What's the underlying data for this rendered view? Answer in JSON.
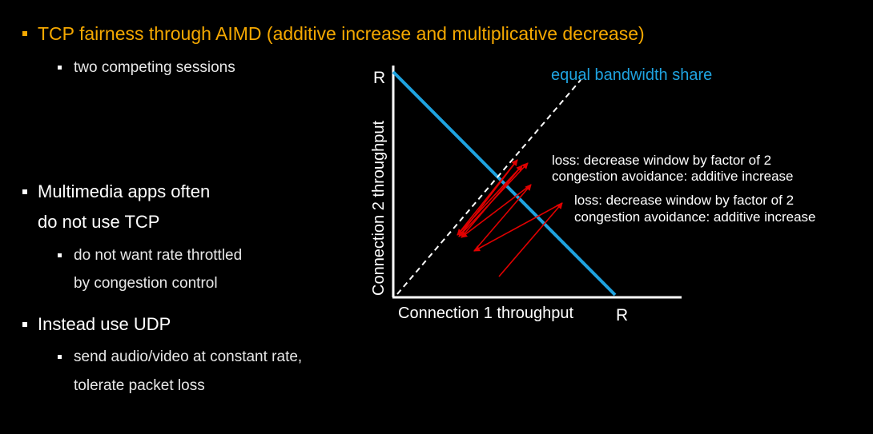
{
  "colors": {
    "background": "#000000",
    "title": "#f5a800",
    "text": "#ffffff",
    "diagonal": "#1fa3e0",
    "arrows": "#e00000"
  },
  "title": "TCP fairness through AIMD (additive increase and multiplicative decrease)",
  "bullets": {
    "sessions": "two competing sessions",
    "multimedia_line1": "Multimedia apps often",
    "multimedia_line2": "do not use TCP",
    "throttle_line1": "do not want rate throttled",
    "throttle_line2": "by congestion control",
    "udp": "Instead use UDP",
    "send_line1": "send audio/video at constant rate,",
    "send_line2": "tolerate packet loss"
  },
  "diagram": {
    "y_axis_label": "Connection 2 throughput",
    "x_axis_label": "Connection 1 throughput",
    "y_max_label": "R",
    "x_max_label": "R",
    "equal_share_label": "equal bandwidth share",
    "annotations": {
      "a1_line1": "loss: decrease window by factor of 2",
      "a1_line2": "congestion avoidance: additive increase",
      "a2_line1": "loss: decrease window by factor of 2",
      "a2_line2": "congestion avoidance: additive increase"
    }
  }
}
